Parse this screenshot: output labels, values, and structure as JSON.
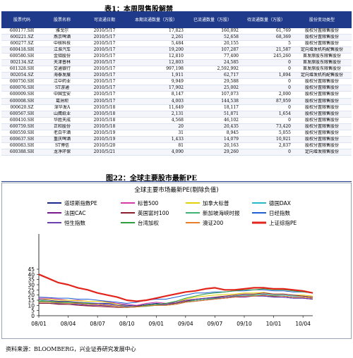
{
  "table": {
    "title": "表1：本周限售股解禁",
    "headers": [
      "股票代码",
      "股票名称",
      "可流通日期",
      "本期流通数量（万股）",
      "已流通数量（万股）",
      "待流通数量（万股）",
      "股份变动类型"
    ],
    "rows": [
      [
        "600177.SH",
        "雅戈尔",
        "2010/5/17",
        "17,823",
        "160,892",
        "61,769",
        "股权分置限售股份"
      ],
      [
        "600221.SZ",
        "燕京啤酒",
        "2010/5/17",
        "2,261",
        "52,658",
        "68,369",
        "股权分置限售股份"
      ],
      [
        "600277.SZ",
        "中核科技",
        "2010/5/17",
        "5,484",
        "20,155",
        "5",
        "股权分置限售股份"
      ],
      [
        "600418.SH",
        "江淮汽车",
        "2010/5/17",
        "19,200",
        "107,287",
        "21,587",
        "定向增发机构配售股份"
      ],
      [
        "600580.SH",
        "金钼股份",
        "2010/5/17",
        "12,810",
        "77,400",
        "245,260",
        "首发原股东限售股份"
      ],
      [
        "002134.SZ",
        "天津普林",
        "2010/5/17",
        "12,803",
        "24,585",
        "0",
        "首发原股东限售股份"
      ],
      [
        "601328.SH",
        "交通银行",
        "2010/5/17",
        "997,198",
        "2,592,992",
        "0",
        "首发原股东限售股份"
      ],
      [
        "002054.SZ",
        "海泰发展",
        "2010/5/17",
        "1,911",
        "62,717",
        "1,894",
        "定向增发机构配售股份"
      ],
      [
        "000750.SH",
        "江中药业",
        "2010/5/17",
        "9,949",
        "29,588",
        "0",
        "股权分置限售股份"
      ],
      [
        "600076.SH",
        "ST游通",
        "2010/5/17",
        "17,902",
        "25,002",
        "0",
        "股权分置限售股份"
      ],
      [
        "600009.SH",
        "中国宝安",
        "2010/5/17",
        "8,147",
        "107,073",
        "2,000",
        "股权分置限售股份"
      ],
      [
        "600008.SH",
        "葛洲坝",
        "2010/5/17",
        "4,003",
        "144,538",
        "87,959",
        "股权分置限售股份"
      ],
      [
        "000620.SZ",
        "深华发A",
        "2010/5/18",
        "11,649",
        "18,117",
        "0",
        "股权分置限售股份"
      ],
      [
        "600567.SH",
        "山鹰纸业",
        "2010/5/18",
        "2,131",
        "51,871",
        "1,654",
        "股权分置限售股份"
      ],
      [
        "600410.SH",
        "华胜天成",
        "2010/5/18",
        "4,568",
        "46,102",
        "0",
        "股权分置限售股份"
      ],
      [
        "600759.SH",
        "正和股份",
        "2010/5/18",
        "20",
        "20,435",
        "73,420",
        "股权分置限售股份"
      ],
      [
        "600559.SH",
        "老白干酒",
        "2010/5/19",
        "31",
        "8,945",
        "5,055",
        "股权分置限售股份"
      ],
      [
        "600637.SH",
        "重庆啤酒",
        "2010/5/19",
        "1,433",
        "14,079",
        "10,921",
        "股权分置限售股份"
      ],
      [
        "600083.SH",
        "ST博信",
        "2010/5/20",
        "81",
        "20,163",
        "2,837",
        "股权分置限售股份"
      ],
      [
        "600388.SH",
        "龙净环保",
        "2010/5/21",
        "4,090",
        "29,260",
        "0",
        "定向增发限售股份"
      ]
    ]
  },
  "figure": {
    "title": "图22：全球主要股市最新PE",
    "source": "资料来源：BLOOMBERG，兴业证券研究发展中心"
  },
  "chart_data": {
    "type": "line",
    "title": "全球主要市场最新PE(剔除负值)",
    "x": [
      "08/01",
      "08/02",
      "08/03",
      "08/04",
      "08/05",
      "08/06",
      "08/07",
      "08/08",
      "08/09",
      "08/10",
      "08/11",
      "08/12",
      "09/01",
      "09/02",
      "09/03",
      "09/04",
      "09/05",
      "09/06",
      "09/07",
      "09/08",
      "09/09",
      "09/10",
      "09/11",
      "09/12",
      "10/01",
      "10/02",
      "10/03",
      "10/04",
      "10/05"
    ],
    "xticks": [
      "08/01",
      "08/04",
      "08/07",
      "08/10",
      "09/01",
      "09/04",
      "09/07",
      "09/10",
      "10/01",
      "10/04"
    ],
    "ylim": [
      0,
      45
    ],
    "yticks": [
      0,
      5,
      10,
      15,
      20,
      25,
      30,
      35,
      40,
      45
    ],
    "legend_position": "top",
    "series": [
      {
        "name": "道琼斯指数PE",
        "color": "#1a2a8c",
        "width": 1,
        "values": [
          14,
          14,
          13.5,
          13,
          13,
          12.5,
          12,
          12,
          11,
          10,
          9.5,
          11,
          12,
          11,
          12,
          14,
          15,
          16,
          16.5,
          17,
          18,
          19,
          19,
          19,
          18.5,
          18,
          17,
          17,
          16
        ]
      },
      {
        "name": "标普500",
        "color": "#d63aa8",
        "width": 1,
        "values": [
          17,
          17,
          16,
          15,
          15,
          14,
          14,
          13.5,
          12,
          11,
          10,
          12,
          13,
          12,
          13,
          15,
          16,
          17,
          17.5,
          18,
          19,
          20,
          20,
          20.5,
          19.5,
          19,
          18,
          18,
          17
        ]
      },
      {
        "name": "加拿大标普",
        "color": "#e6d200",
        "width": 1,
        "values": [
          16,
          16,
          15,
          15,
          14.5,
          14,
          14,
          13,
          11,
          9,
          9,
          10,
          11,
          11,
          13,
          16,
          18,
          19,
          20,
          20.5,
          21,
          22,
          22,
          22.5,
          21,
          21,
          20,
          20,
          19
        ]
      },
      {
        "name": "德国DAX",
        "color": "#27b7c9",
        "width": 1,
        "values": [
          13,
          13,
          12,
          12,
          11.5,
          11,
          11,
          10,
          9,
          8.5,
          9,
          10,
          11,
          11,
          12,
          14,
          15,
          16,
          17,
          18,
          19,
          20,
          20,
          21,
          20,
          20,
          19,
          19,
          18
        ]
      },
      {
        "name": "法国CAC",
        "color": "#7a1a8f",
        "width": 1,
        "values": [
          12,
          12,
          11.5,
          11,
          11,
          10,
          10,
          9.5,
          9,
          8,
          8.5,
          9.5,
          10,
          10,
          11,
          13,
          14,
          15,
          16,
          17,
          18,
          18,
          19,
          19,
          18,
          18,
          17,
          17,
          16
        ]
      },
      {
        "name": "英国富时100",
        "color": "#8b1e2e",
        "width": 1,
        "values": [
          12,
          12,
          11,
          11,
          10,
          9.5,
          9,
          8.5,
          8,
          8,
          9,
          10,
          11,
          11,
          12,
          14,
          16,
          17,
          18,
          19,
          20,
          21,
          21,
          22,
          21,
          21,
          20,
          19,
          18
        ]
      },
      {
        "name": "新加坡海峡时报",
        "color": "#3cb371",
        "width": 1,
        "values": [
          15,
          14,
          14,
          13.5,
          13,
          12,
          11,
          10,
          9,
          8,
          8.5,
          9,
          10,
          10,
          11,
          13,
          15,
          16,
          17,
          18,
          19,
          19,
          20,
          20,
          19.5,
          19,
          18,
          18,
          17
        ]
      },
      {
        "name": "日经指数",
        "color": "#1f5fd6",
        "width": 1,
        "values": [
          18,
          17.5,
          17,
          17,
          16,
          16,
          15,
          14,
          13,
          12,
          13,
          15,
          16,
          16,
          18,
          20,
          22,
          22,
          23,
          23,
          24,
          24,
          25,
          25,
          24,
          24,
          23,
          23,
          22
        ]
      },
      {
        "name": "恒生指数",
        "color": "#6a3fb0",
        "width": 1,
        "values": [
          16,
          15,
          14,
          14,
          13,
          12,
          12,
          11,
          10,
          9,
          8.5,
          10,
          11,
          11,
          13,
          15,
          16,
          17,
          17.5,
          18,
          18.5,
          19,
          19,
          19,
          18,
          18,
          17,
          17,
          16
        ]
      },
      {
        "name": "台湾加权",
        "color": "#2e9e3e",
        "width": 1,
        "values": [
          14,
          14,
          13,
          13,
          12.5,
          12,
          11,
          10,
          9,
          8,
          8.5,
          10,
          11,
          12,
          14,
          17,
          19,
          21,
          22,
          23,
          24,
          25,
          25,
          26,
          25,
          25,
          24,
          23,
          22
        ]
      },
      {
        "name": "澳证200",
        "color": "#e87d2a",
        "width": 1,
        "values": [
          13,
          13,
          12.5,
          12,
          12,
          11,
          11,
          10,
          9,
          8,
          8.5,
          9.5,
          10,
          10,
          11,
          13,
          14,
          15,
          16,
          17,
          18,
          19,
          19,
          20,
          19,
          19,
          18,
          18,
          17
        ]
      },
      {
        "name": "上证综指PE",
        "color": "#e3241b",
        "width": 2.2,
        "values": [
          40,
          36,
          32,
          30,
          27,
          25,
          22,
          20,
          18,
          15,
          14,
          15,
          17,
          19,
          21,
          23,
          24,
          26,
          27,
          25,
          25,
          26,
          27,
          27,
          26,
          26,
          25,
          24,
          22
        ]
      }
    ]
  }
}
